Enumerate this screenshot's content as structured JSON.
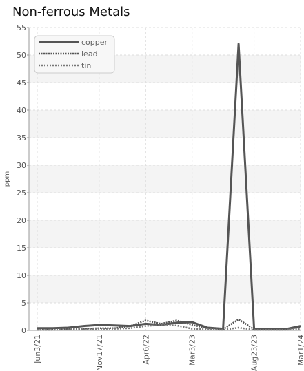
{
  "chart_data": {
    "type": "line",
    "title": "Non-ferrous Metals",
    "xlabel": "",
    "ylabel": "ppm",
    "ylim": [
      0,
      55
    ],
    "yticks": [
      0,
      5,
      10,
      15,
      20,
      25,
      30,
      35,
      40,
      45,
      50,
      55
    ],
    "x_tick_labels": [
      {
        "index": 0,
        "label": "Jun3/21"
      },
      {
        "index": 4,
        "label": "Nov17/21"
      },
      {
        "index": 7,
        "label": "Apr6/22"
      },
      {
        "index": 10,
        "label": "Mar3/23"
      },
      {
        "index": 14,
        "label": "Aug23/23"
      },
      {
        "index": 17,
        "label": "Mar1/24"
      }
    ],
    "grid": true,
    "legend_position": "top-left",
    "series": [
      {
        "name": "copper",
        "color": "#555555",
        "style": "solid",
        "values": [
          0.4,
          0.4,
          0.5,
          0.8,
          1.0,
          0.9,
          0.8,
          1.2,
          1.0,
          1.4,
          1.5,
          0.5,
          0.3,
          52,
          0.3,
          0.2,
          0.2,
          0.8
        ]
      },
      {
        "name": "lead",
        "color": "#555555",
        "style": "dotted",
        "values": [
          0.2,
          0.2,
          0.3,
          0.3,
          0.4,
          0.4,
          0.8,
          1.8,
          1.2,
          1.8,
          1.0,
          0.4,
          0.2,
          2.0,
          0.2,
          0.2,
          0.2,
          0.6
        ]
      },
      {
        "name": "tin",
        "color": "#777777",
        "style": "dashed",
        "values": [
          0.1,
          0.1,
          0.2,
          0.2,
          0.3,
          0.3,
          0.4,
          0.8,
          1.0,
          0.9,
          0.3,
          0.2,
          0.1,
          0.5,
          0.1,
          0.1,
          0.1,
          0.3
        ]
      }
    ]
  }
}
